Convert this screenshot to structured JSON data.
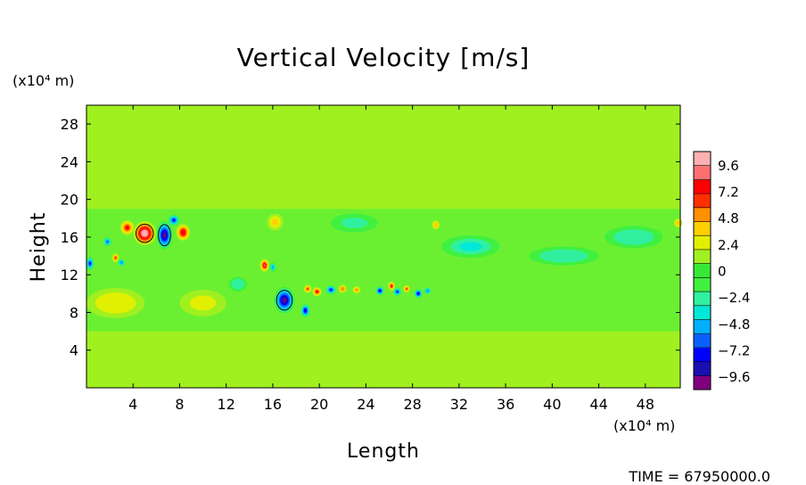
{
  "chart_data": {
    "type": "heatmap",
    "title": "Vertical Velocity [m/s]",
    "xlabel": "Length",
    "ylabel": "Height",
    "x_unit": "(x10⁴ m)",
    "y_unit": "(x10⁴ m)",
    "xlim": [
      0,
      51
    ],
    "ylim": [
      0,
      30
    ],
    "xticks": [
      4,
      8,
      12,
      16,
      20,
      24,
      28,
      32,
      36,
      40,
      44,
      48
    ],
    "yticks": [
      4,
      8,
      12,
      16,
      20,
      24,
      28
    ],
    "colorbar": {
      "min": -10.8,
      "max": 10.8,
      "tick_values": [
        9.6,
        7.2,
        4.8,
        2.4,
        0,
        -2.4,
        -4.8,
        -7.2,
        -9.6
      ],
      "tick_labels": [
        "9.6",
        "7.2",
        "4.8",
        "2.4",
        "0",
        "−2.4",
        "−4.8",
        "−7.2",
        "−9.6"
      ],
      "colors": [
        "#800080",
        "#1a10b0",
        "#0000ff",
        "#0a60ff",
        "#00b0ff",
        "#00e8d8",
        "#30f0a0",
        "#40f040",
        "#38e838",
        "#a0f020",
        "#e0f000",
        "#ffd000",
        "#ff9000",
        "#ff3000",
        "#ff0000",
        "#ff7070",
        "#ffb0b0"
      ]
    },
    "background_value": 0.8,
    "bands": [
      {
        "name": "lower-noisy-band",
        "y_range": [
          6,
          19
        ],
        "value": -1.2
      },
      {
        "name": "quiet-upper-region",
        "y_range": [
          19.5,
          30
        ],
        "value": 0.8
      }
    ],
    "features": [
      {
        "x": 5.0,
        "y": 16.4,
        "rx": 1.0,
        "ry": 1.3,
        "value": 10.5
      },
      {
        "x": 3.5,
        "y": 17.0,
        "rx": 0.6,
        "ry": 0.8,
        "value": 7.5
      },
      {
        "x": 6.7,
        "y": 16.2,
        "rx": 0.7,
        "ry": 1.5,
        "value": -10.0
      },
      {
        "x": 8.3,
        "y": 16.5,
        "rx": 0.6,
        "ry": 0.9,
        "value": 8.0
      },
      {
        "x": 7.5,
        "y": 17.8,
        "rx": 0.5,
        "ry": 0.6,
        "value": -7.0
      },
      {
        "x": 1.8,
        "y": 15.5,
        "rx": 0.35,
        "ry": 0.5,
        "value": -6.5
      },
      {
        "x": 0.3,
        "y": 13.2,
        "rx": 0.35,
        "ry": 0.7,
        "value": -7.0
      },
      {
        "x": 2.5,
        "y": 13.8,
        "rx": 0.3,
        "ry": 0.5,
        "value": 6.5
      },
      {
        "x": 3.0,
        "y": 13.3,
        "rx": 0.3,
        "ry": 0.4,
        "value": -5.5
      },
      {
        "x": 15.3,
        "y": 13.0,
        "rx": 0.4,
        "ry": 0.7,
        "value": 8.5
      },
      {
        "x": 16.0,
        "y": 12.8,
        "rx": 0.3,
        "ry": 0.5,
        "value": -5.0
      },
      {
        "x": 17.0,
        "y": 9.3,
        "rx": 0.9,
        "ry": 1.4,
        "value": -10.2
      },
      {
        "x": 18.8,
        "y": 8.2,
        "rx": 0.4,
        "ry": 0.7,
        "value": -8.0
      },
      {
        "x": 19.0,
        "y": 10.5,
        "rx": 0.35,
        "ry": 0.45,
        "value": 6.0
      },
      {
        "x": 19.8,
        "y": 10.2,
        "rx": 0.4,
        "ry": 0.5,
        "value": 7.5
      },
      {
        "x": 21.0,
        "y": 10.4,
        "rx": 0.45,
        "ry": 0.5,
        "value": -7.5
      },
      {
        "x": 22.0,
        "y": 10.5,
        "rx": 0.35,
        "ry": 0.45,
        "value": 5.5
      },
      {
        "x": 23.2,
        "y": 10.4,
        "rx": 0.35,
        "ry": 0.4,
        "value": 4.5
      },
      {
        "x": 25.2,
        "y": 10.3,
        "rx": 0.35,
        "ry": 0.5,
        "value": -8.5
      },
      {
        "x": 26.2,
        "y": 10.8,
        "rx": 0.3,
        "ry": 0.5,
        "value": 7.5
      },
      {
        "x": 26.7,
        "y": 10.2,
        "rx": 0.35,
        "ry": 0.45,
        "value": -7.5
      },
      {
        "x": 27.5,
        "y": 10.5,
        "rx": 0.3,
        "ry": 0.4,
        "value": 6.5
      },
      {
        "x": 28.5,
        "y": 10.0,
        "rx": 0.35,
        "ry": 0.5,
        "value": -8.0
      },
      {
        "x": 29.3,
        "y": 10.3,
        "rx": 0.3,
        "ry": 0.4,
        "value": -5.5
      },
      {
        "x": 16.2,
        "y": 17.6,
        "rx": 0.7,
        "ry": 0.9,
        "value": 3.8
      },
      {
        "x": 30.0,
        "y": 17.3,
        "rx": 0.35,
        "ry": 0.5,
        "value": 4.0
      },
      {
        "x": 50.8,
        "y": 17.5,
        "rx": 0.35,
        "ry": 0.5,
        "value": 4.0
      },
      {
        "x": 2.5,
        "y": 9.0,
        "rx": 2.5,
        "ry": 1.6,
        "value": 2.8
      },
      {
        "x": 10.0,
        "y": 9.0,
        "rx": 2.0,
        "ry": 1.4,
        "value": 2.2
      },
      {
        "x": 13.0,
        "y": 11.0,
        "rx": 0.8,
        "ry": 0.8,
        "value": -3.0
      },
      {
        "x": 33.0,
        "y": 15.0,
        "rx": 2.5,
        "ry": 1.2,
        "value": -3.2
      },
      {
        "x": 41.0,
        "y": 14.0,
        "rx": 3.0,
        "ry": 1.0,
        "value": -2.8
      },
      {
        "x": 47.0,
        "y": 16.0,
        "rx": 2.5,
        "ry": 1.2,
        "value": -3.0
      },
      {
        "x": 23.0,
        "y": 17.5,
        "rx": 2.0,
        "ry": 1.0,
        "value": -2.6
      }
    ]
  },
  "time_label": "TIME = 67950000.0"
}
